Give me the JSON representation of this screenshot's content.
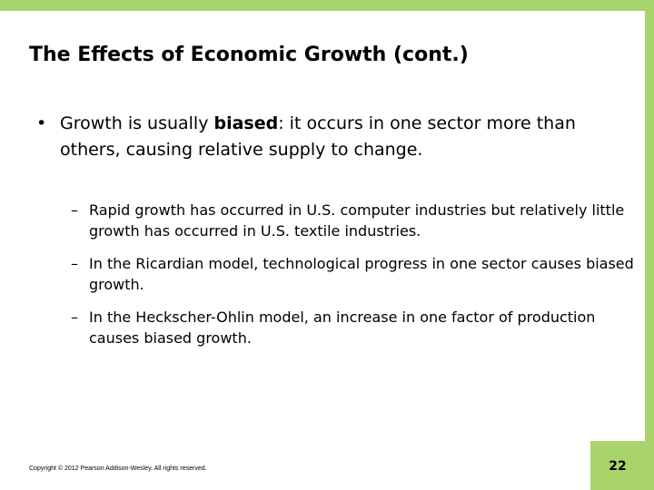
{
  "title": "The Effects of Economic Growth (cont.)",
  "bullet": {
    "parts": [
      "Growth is usually ",
      "biased",
      ": it occurs in one sector more than others, causing relative supply to change."
    ]
  },
  "sub_bullets": [
    "Rapid growth has occurred in U.S. computer industries but relatively little growth has occurred in U.S. textile industries.",
    "In the Ricardian model, technological progress in one sector causes biased growth.",
    "In the Heckscher-Ohlin model, an increase in one factor of production causes biased growth."
  ],
  "footer": "Copyright © 2012 Pearson Addison-Wesley. All rights reserved.",
  "page_number": "22"
}
